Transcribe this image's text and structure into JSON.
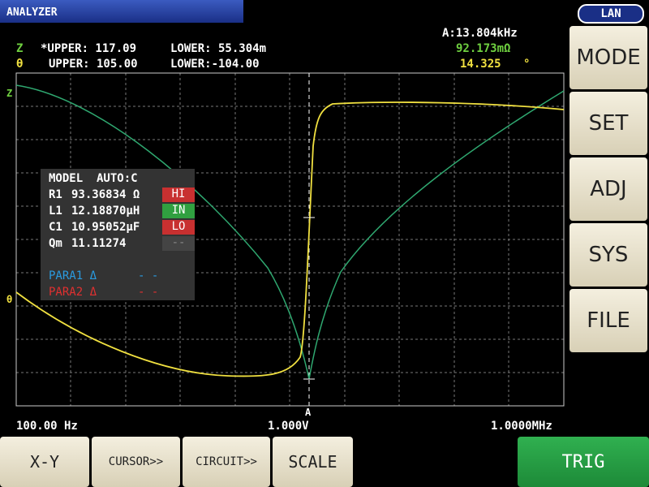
{
  "header": {
    "title": "ANALYZER",
    "status": "LAN"
  },
  "limits": {
    "z_symbol": "Z",
    "z_upper": "*UPPER: 117.09",
    "z_lower": "LOWER: 55.304m",
    "t_symbol": "θ",
    "t_upper": "UPPER: 105.00",
    "t_lower": "LOWER:-104.00"
  },
  "cursor": {
    "freq": "A:13.804kHz",
    "z_value": "92.173mΩ",
    "t_value": "14.325",
    "t_unit": "°",
    "marker": "A"
  },
  "plot": {
    "z_label": "Z",
    "t_label": "θ",
    "x_start": "100.00 Hz",
    "level": "1.000V",
    "x_end": "1.0000MHz"
  },
  "panel": {
    "model": "MODEL  AUTO:C",
    "rows": [
      [
        "R1",
        "93.36834 Ω",
        "HI"
      ],
      [
        "L1",
        "12.18870µH",
        "IN"
      ],
      [
        "C1",
        "10.95052µF",
        "LO"
      ],
      [
        "Qm",
        "11.11274",
        "--"
      ]
    ],
    "para": [
      [
        "PARA1 Δ",
        "- -"
      ],
      [
        "PARA2 Δ",
        "- -"
      ]
    ]
  },
  "side_buttons": [
    "MODE",
    "SET",
    "ADJ",
    "SYS",
    "FILE"
  ],
  "bottom_buttons": [
    "X-Y",
    "CURSOR>>",
    "CIRCUIT>>",
    "SCALE",
    "TRIG"
  ]
}
